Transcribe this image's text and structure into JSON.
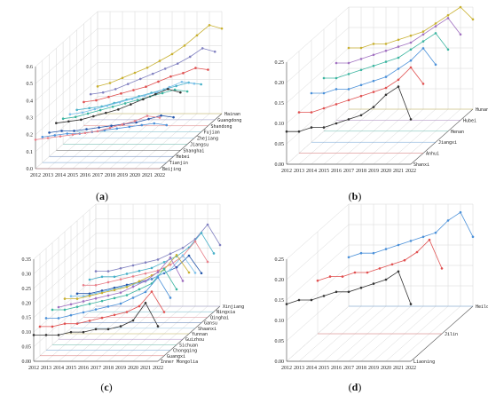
{
  "chart_data": [
    {
      "panel": "(a)",
      "type": "line",
      "x": [
        "2012",
        "2013",
        "2014",
        "2015",
        "2016",
        "2017",
        "2018",
        "2019",
        "2020",
        "2021",
        "2022"
      ],
      "ylim": [
        0.0,
        0.6
      ],
      "yticks": [
        "0.0",
        "0.1",
        "0.2",
        "0.3",
        "0.4",
        "0.5",
        "0.6"
      ],
      "series": [
        {
          "name": "Beijing",
          "color": "#e8808a",
          "values": [
            0.17,
            0.18,
            0.19,
            0.2,
            0.21,
            0.22,
            0.24,
            0.26,
            0.28,
            0.31,
            0.3
          ]
        },
        {
          "name": "Tianjin",
          "color": "#4a90d9",
          "values": [
            0.15,
            0.16,
            0.17,
            0.17,
            0.18,
            0.19,
            0.2,
            0.21,
            0.22,
            0.23,
            0.22
          ]
        },
        {
          "name": "Hebei",
          "color": "#2255aa",
          "values": [
            0.14,
            0.15,
            0.15,
            0.16,
            0.17,
            0.18,
            0.19,
            0.2,
            0.22,
            0.24,
            0.23
          ]
        },
        {
          "name": "Shanghai",
          "color": "#333333",
          "values": [
            0.16,
            0.17,
            0.18,
            0.2,
            0.22,
            0.24,
            0.27,
            0.3,
            0.33,
            0.36,
            0.34
          ]
        },
        {
          "name": "Jiangsu",
          "color": "#3bb5a0",
          "values": [
            0.15,
            0.16,
            0.18,
            0.2,
            0.22,
            0.24,
            0.26,
            0.28,
            0.3,
            0.32,
            0.31
          ]
        },
        {
          "name": "Zhejiang",
          "color": "#7cc0ea",
          "values": [
            0.14,
            0.15,
            0.17,
            0.19,
            0.21,
            0.23,
            0.25,
            0.27,
            0.3,
            0.33,
            0.32
          ]
        },
        {
          "name": "Fujian",
          "color": "#47b0c8",
          "values": [
            0.13,
            0.14,
            0.15,
            0.17,
            0.19,
            0.21,
            0.23,
            0.25,
            0.27,
            0.29,
            0.28
          ]
        },
        {
          "name": "Shandong",
          "color": "#e05050",
          "values": [
            0.14,
            0.15,
            0.17,
            0.19,
            0.21,
            0.23,
            0.26,
            0.29,
            0.31,
            0.34,
            0.33
          ]
        },
        {
          "name": "Guangdong",
          "color": "#8080c0",
          "values": [
            0.15,
            0.16,
            0.18,
            0.21,
            0.24,
            0.27,
            0.3,
            0.33,
            0.37,
            0.42,
            0.4
          ]
        },
        {
          "name": "Hainan",
          "color": "#c8b030",
          "values": [
            0.16,
            0.18,
            0.21,
            0.24,
            0.27,
            0.31,
            0.35,
            0.4,
            0.46,
            0.52,
            0.5
          ]
        }
      ]
    },
    {
      "panel": "(b)",
      "type": "line",
      "x": [
        "2012",
        "2013",
        "2014",
        "2015",
        "2016",
        "2017",
        "2018",
        "2019",
        "2020",
        "2021",
        "2022"
      ],
      "ylim": [
        0.0,
        0.25
      ],
      "yticks": [
        "0.00",
        "0.05",
        "0.10",
        "0.15",
        "0.20",
        "0.25"
      ],
      "series": [
        {
          "name": "Shanxi",
          "color": "#333333",
          "values": [
            0.08,
            0.08,
            0.09,
            0.09,
            0.1,
            0.11,
            0.12,
            0.14,
            0.17,
            0.19,
            0.11
          ]
        },
        {
          "name": "Anhui",
          "color": "#e05050",
          "values": [
            0.1,
            0.1,
            0.11,
            0.12,
            0.13,
            0.14,
            0.15,
            0.16,
            0.18,
            0.21,
            0.17
          ]
        },
        {
          "name": "Jiangxi",
          "color": "#4a90d9",
          "values": [
            0.12,
            0.12,
            0.13,
            0.13,
            0.14,
            0.15,
            0.16,
            0.18,
            0.2,
            0.23,
            0.19
          ]
        },
        {
          "name": "Henan",
          "color": "#3bb5a0",
          "values": [
            0.13,
            0.13,
            0.14,
            0.15,
            0.16,
            0.17,
            0.18,
            0.2,
            0.22,
            0.24,
            0.2
          ]
        },
        {
          "name": "Hubei",
          "color": "#a070c0",
          "values": [
            0.14,
            0.14,
            0.15,
            0.16,
            0.17,
            0.18,
            0.19,
            0.21,
            0.23,
            0.25,
            0.21
          ]
        },
        {
          "name": "Hunan",
          "color": "#c8b030",
          "values": [
            0.15,
            0.15,
            0.16,
            0.16,
            0.17,
            0.18,
            0.19,
            0.21,
            0.23,
            0.25,
            0.22
          ]
        }
      ]
    },
    {
      "panel": "(c)",
      "type": "line",
      "x": [
        "2012",
        "2013",
        "2014",
        "2015",
        "2016",
        "2017",
        "2018",
        "2019",
        "2020",
        "2021",
        "2022"
      ],
      "ylim": [
        0.0,
        0.35
      ],
      "yticks": [
        "0.00",
        "0.05",
        "0.10",
        "0.15",
        "0.20",
        "0.25",
        "0.30",
        "0.35"
      ],
      "series": [
        {
          "name": "Inner Mongolia",
          "color": "#333333",
          "values": [
            0.09,
            0.09,
            0.09,
            0.1,
            0.1,
            0.11,
            0.11,
            0.12,
            0.14,
            0.2,
            0.12
          ]
        },
        {
          "name": "Guangxi",
          "color": "#e05050",
          "values": [
            0.1,
            0.1,
            0.11,
            0.11,
            0.12,
            0.13,
            0.14,
            0.15,
            0.17,
            0.22,
            0.15
          ]
        },
        {
          "name": "Chongqing",
          "color": "#4a90d9",
          "values": [
            0.11,
            0.11,
            0.12,
            0.13,
            0.14,
            0.15,
            0.16,
            0.18,
            0.2,
            0.25,
            0.18
          ]
        },
        {
          "name": "Sichuan",
          "color": "#3bb5a0",
          "values": [
            0.12,
            0.12,
            0.13,
            0.14,
            0.15,
            0.16,
            0.17,
            0.19,
            0.21,
            0.26,
            0.19
          ]
        },
        {
          "name": "Guizhou",
          "color": "#a070c0",
          "values": [
            0.11,
            0.12,
            0.13,
            0.14,
            0.15,
            0.16,
            0.18,
            0.2,
            0.23,
            0.28,
            0.2
          ]
        },
        {
          "name": "Yunnan",
          "color": "#c8b030",
          "values": [
            0.12,
            0.12,
            0.13,
            0.14,
            0.15,
            0.16,
            0.18,
            0.2,
            0.22,
            0.27,
            0.21
          ]
        },
        {
          "name": "Shaanxi",
          "color": "#7cc0ea",
          "values": [
            0.11,
            0.11,
            0.12,
            0.13,
            0.14,
            0.15,
            0.16,
            0.18,
            0.2,
            0.25,
            0.19
          ]
        },
        {
          "name": "Gansu",
          "color": "#2255aa",
          "values": [
            0.1,
            0.1,
            0.11,
            0.12,
            0.13,
            0.14,
            0.15,
            0.17,
            0.19,
            0.23,
            0.17
          ]
        },
        {
          "name": "Qinghai",
          "color": "#e8808a",
          "values": [
            0.11,
            0.11,
            0.12,
            0.13,
            0.14,
            0.15,
            0.16,
            0.18,
            0.21,
            0.26,
            0.19
          ]
        },
        {
          "name": "Ningxia",
          "color": "#47b0c8",
          "values": [
            0.11,
            0.12,
            0.12,
            0.13,
            0.14,
            0.15,
            0.17,
            0.19,
            0.22,
            0.27,
            0.2
          ]
        },
        {
          "name": "Xinjiang",
          "color": "#8080c0",
          "values": [
            0.12,
            0.12,
            0.13,
            0.14,
            0.15,
            0.16,
            0.18,
            0.2,
            0.23,
            0.28,
            0.21
          ]
        }
      ]
    },
    {
      "panel": "(d)",
      "type": "line",
      "x": [
        "2012",
        "2013",
        "2014",
        "2015",
        "2016",
        "2017",
        "2018",
        "2019",
        "2020",
        "2021",
        "2022"
      ],
      "ylim": [
        0.0,
        0.25
      ],
      "yticks": [
        "0.00",
        "0.05",
        "0.10",
        "0.15",
        "0.20",
        "0.25"
      ],
      "series": [
        {
          "name": "Liaoning",
          "color": "#333333",
          "values": [
            0.14,
            0.15,
            0.15,
            0.16,
            0.17,
            0.17,
            0.18,
            0.19,
            0.2,
            0.22,
            0.14
          ]
        },
        {
          "name": "Jilin",
          "color": "#e05050",
          "values": [
            0.13,
            0.14,
            0.14,
            0.15,
            0.15,
            0.16,
            0.17,
            0.18,
            0.2,
            0.23,
            0.16
          ]
        },
        {
          "name": "Heilongjiang",
          "color": "#4a90d9",
          "values": [
            0.12,
            0.13,
            0.13,
            0.14,
            0.15,
            0.16,
            0.17,
            0.18,
            0.21,
            0.23,
            0.17
          ]
        }
      ]
    }
  ]
}
